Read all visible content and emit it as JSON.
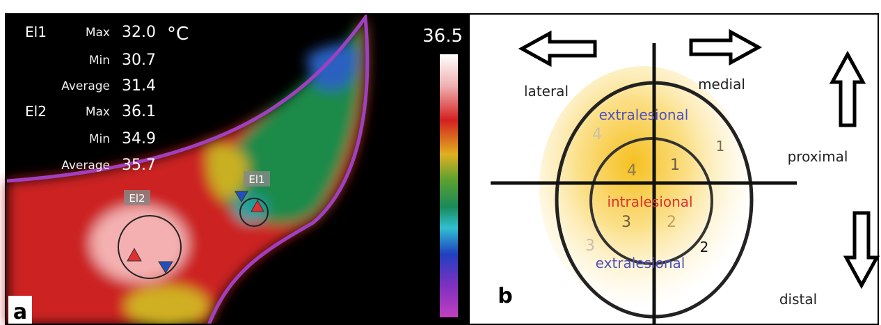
{
  "panel_a": {
    "label": "a",
    "unit": "°C",
    "scale_max": "36.5",
    "readings": [
      {
        "name": "El1",
        "rows": [
          {
            "stat": "Max",
            "value": "32.0"
          },
          {
            "stat": "Min",
            "value": "30.7"
          },
          {
            "stat": "Average",
            "value": "31.4"
          }
        ]
      },
      {
        "name": "El2",
        "rows": [
          {
            "stat": "Max",
            "value": "36.1"
          },
          {
            "stat": "Min",
            "value": "34.9"
          },
          {
            "stat": "Average",
            "value": "35.7"
          }
        ]
      }
    ],
    "markers": [
      "El1",
      "El2"
    ]
  },
  "panel_b": {
    "label": "b",
    "directions": {
      "left": "lateral",
      "right": "medial",
      "up": "proximal",
      "down": "distal"
    },
    "zones": {
      "outer_top": "extralesional",
      "inner": "intralesional",
      "outer_bottom": "extralesional"
    },
    "inner_quadrants": [
      "1",
      "2",
      "3",
      "4"
    ],
    "outer_quadrants": [
      "1",
      "2",
      "3",
      "4"
    ]
  }
}
